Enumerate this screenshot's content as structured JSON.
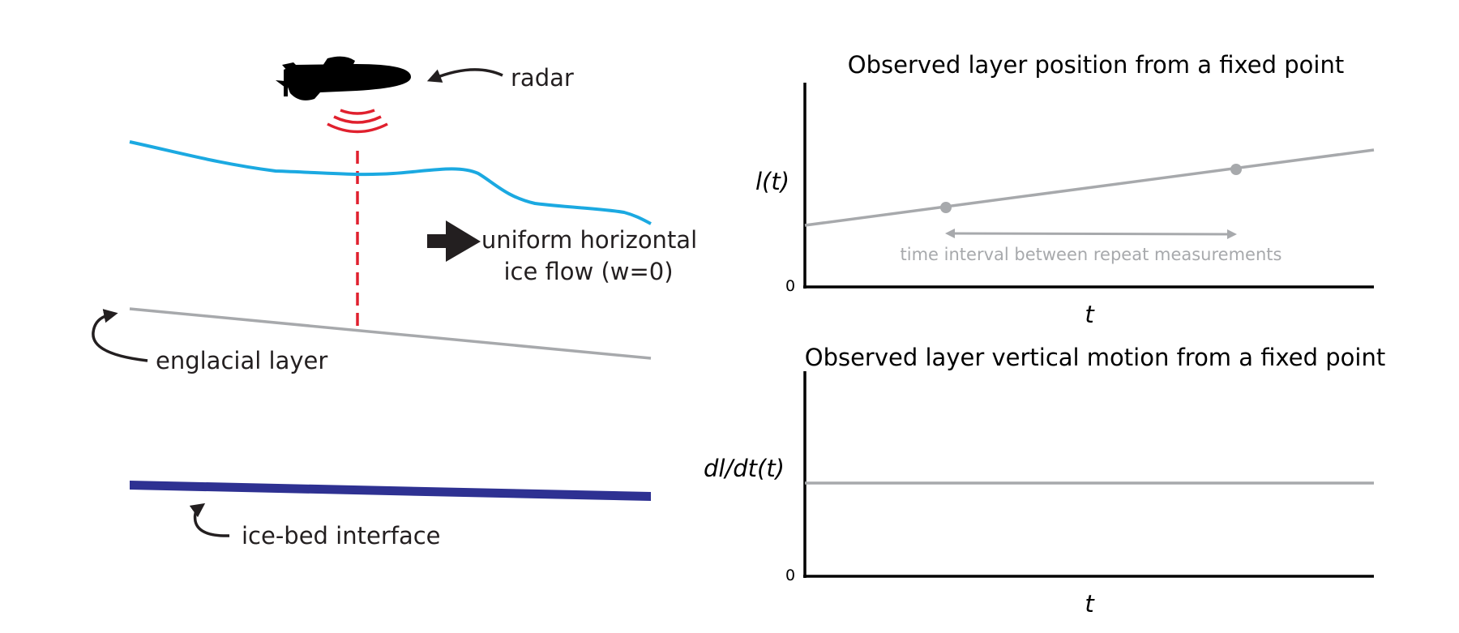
{
  "diagram": {
    "labels": {
      "radar": "radar",
      "flow_line1": "uniform horizontal",
      "flow_line2": "ice flow (w=0)",
      "englacial_layer": "englacial layer",
      "ice_bed": "ice-bed interface"
    },
    "colors": {
      "surface": "#1ba9e1",
      "radar_signal": "#e0202e",
      "englacial_layer": "#a7a9ac",
      "ice_bed": "#2e3192",
      "aircraft": "#000000",
      "annotation": "#231f20"
    },
    "icons": [
      "airplane-icon",
      "radar-waves-icon",
      "flow-arrow-icon"
    ]
  },
  "chart_data": [
    {
      "type": "line",
      "title": "Observed layer position from a fixed point",
      "xlabel": "t",
      "ylabel": "l(t)",
      "y_origin_label": "0",
      "annotation": "time interval between repeat measurements",
      "series": [
        {
          "shape": "linear increasing",
          "markers": 2
        }
      ],
      "grid": false
    },
    {
      "type": "line",
      "title": "Observed layer vertical motion from a fixed point",
      "xlabel": "t",
      "ylabel": "dl/dt(t)",
      "y_origin_label": "0",
      "series": [
        {
          "shape": "constant"
        }
      ],
      "grid": false
    }
  ]
}
